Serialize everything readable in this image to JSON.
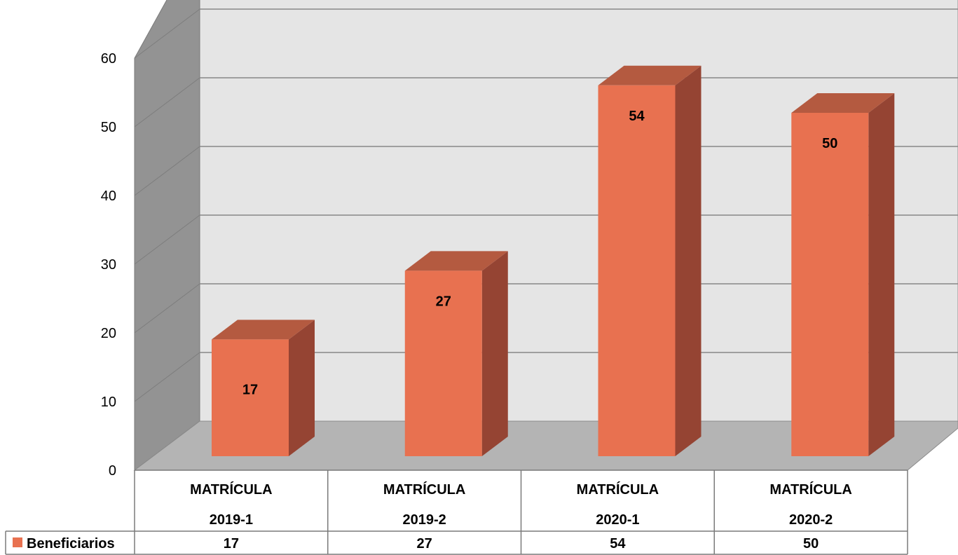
{
  "chart_data": {
    "type": "bar",
    "three_d": true,
    "title": "",
    "xlabel": "",
    "ylabel": "",
    "categories": [
      [
        "MATRÍCULA",
        "2019-1"
      ],
      [
        "MATRÍCULA",
        "2019-2"
      ],
      [
        "MATRÍCULA",
        "2020-1"
      ],
      [
        "MATRÍCULA",
        "2020-2"
      ]
    ],
    "series": [
      {
        "name": "Beneficiarios",
        "values": [
          17,
          27,
          54,
          50
        ],
        "color": "#e87150"
      }
    ],
    "ylim": [
      0,
      60
    ],
    "yticks": [
      0,
      10,
      20,
      30,
      40,
      50,
      60
    ],
    "grid": true,
    "data_labels": true,
    "data_table": true,
    "colors": {
      "bar_front": "#e87150",
      "bar_top": "#b45a40",
      "bar_side": "#954433",
      "back_wall": "#e5e5e5",
      "side_wall": "#939393",
      "floor": "#b4b4b4",
      "gridline": "#888888"
    }
  }
}
